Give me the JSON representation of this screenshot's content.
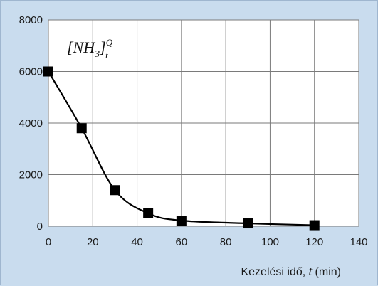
{
  "chart_data": {
    "type": "line",
    "title": "",
    "annotation": {
      "base": "[NH",
      "sub": "3",
      "close": "]",
      "sup": "Q",
      "subt": "t"
    },
    "xlabel": {
      "prefix": "Kezelési idő, ",
      "var": "t",
      "suffix": " (min)"
    },
    "ylabel": "",
    "xlim": [
      0,
      140
    ],
    "ylim": [
      0,
      8000
    ],
    "x_ticks": [
      0,
      20,
      40,
      60,
      80,
      100,
      120,
      140
    ],
    "y_ticks": [
      0,
      2000,
      4000,
      6000,
      8000
    ],
    "grid": true,
    "legend": "none",
    "series": [
      {
        "marker": "square",
        "line": "smooth",
        "color": "#000000",
        "x": [
          0,
          15,
          30,
          45,
          60,
          90,
          120
        ],
        "y": [
          6000,
          3800,
          1400,
          500,
          220,
          110,
          40
        ]
      }
    ],
    "colors": {
      "background": "#c9dcee",
      "plot_background": "#ffffff",
      "grid": "#7a7a7a",
      "series": "#000000"
    }
  }
}
